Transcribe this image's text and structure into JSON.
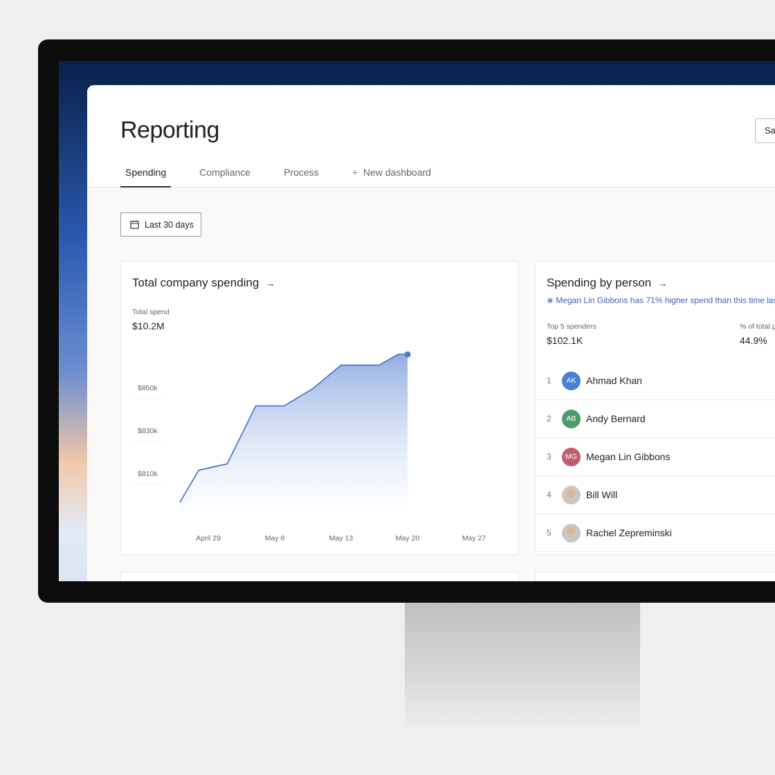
{
  "header": {
    "title": "Reporting",
    "save_label": "Sa"
  },
  "tabs": [
    {
      "label": "Spending"
    },
    {
      "label": "Compliance"
    },
    {
      "label": "Process"
    },
    {
      "label": "New dashboard"
    }
  ],
  "filter": {
    "date_range": "Last 30 days"
  },
  "total_card": {
    "title": "Total company spending",
    "metric_label": "Total spend",
    "metric_value": "$10.2M"
  },
  "chart_data": {
    "type": "area",
    "x_ticks": [
      "April 29",
      "May 6",
      "May 13",
      "May 20",
      "May 27"
    ],
    "y_ticks": [
      "$810k",
      "$830k",
      "$850k"
    ],
    "x": [
      "Apr 26",
      "Apr 28",
      "May 1",
      "May 4",
      "May 7",
      "May 10",
      "May 13",
      "May 17",
      "May 19",
      "May 20"
    ],
    "y": [
      799,
      814,
      817,
      844,
      844,
      852,
      863,
      863,
      868,
      868
    ],
    "ylabel_unit": "$k",
    "color": "#4e7bc9"
  },
  "person_card": {
    "title": "Spending by person",
    "insight": "Megan Lin Gibbons has 71% higher spend than this time las",
    "top_label": "Top 5 spenders",
    "top_value": "$102.1K",
    "pct_label": "% of total p",
    "pct_value": "44.9%",
    "people": [
      {
        "rank": "1",
        "initials": "AK",
        "name": "Ahmad Khan",
        "color": "#4a7fd6"
      },
      {
        "rank": "2",
        "initials": "AB",
        "name": "Andy Bernard",
        "color": "#4f9a6a"
      },
      {
        "rank": "3",
        "initials": "MG",
        "name": "Megan Lin Gibbons",
        "color": "#c55a6f"
      },
      {
        "rank": "4",
        "initials": "",
        "name": "Bill Will",
        "color": "#9a8a80"
      },
      {
        "rank": "5",
        "initials": "",
        "name": "Rachel Zepreminski",
        "color": "#8a7a6f"
      }
    ]
  }
}
